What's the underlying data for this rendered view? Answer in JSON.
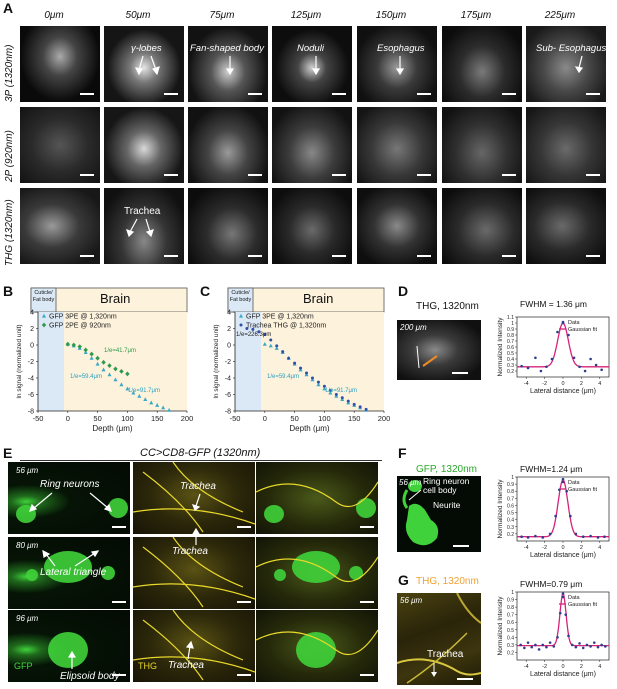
{
  "panel_letters": {
    "A": "A",
    "B": "B",
    "C": "C",
    "D": "D",
    "E": "E",
    "F": "F",
    "G": "G"
  },
  "panelA": {
    "depths": [
      "0μm",
      "50μm",
      "75μm",
      "125μm",
      "150μm",
      "175μm",
      "225μm"
    ],
    "rows": [
      "3P (1320nm)",
      "2P (920nm)",
      "THG (1320nm)"
    ],
    "annotations": {
      "gamma_lobes": "γ-lobes",
      "fan_shaped_body": "Fan-shaped body",
      "noduli": "Noduli",
      "esophagus": "Esophagus",
      "sub_esophagus": "Sub- Esophagus",
      "trachea": "Trachea"
    }
  },
  "panelB": {
    "region1": "Cuticle/ Fat body",
    "region2": "Brain"
  },
  "panelC": {
    "region1": "Cuticle/ Fat body",
    "region2": "Brain"
  },
  "panelD": {
    "title": "THG, 1320nm",
    "depth": "200 μm",
    "fwhm": "FWHM = 1.36 μm"
  },
  "panelE": {
    "title": "CC>CD8-GFP (1320nm)",
    "depths": [
      "56 μm",
      "80 μm",
      "96 μm"
    ],
    "annotations": {
      "ring_neurons": "Ring neurons",
      "lateral_triangle": "Lateral triangle",
      "ellipsoid_body": "Elipsoid body",
      "gfp": "GFP",
      "thg": "THG",
      "trachea": "Trachea"
    }
  },
  "panelF": {
    "title": "GFP, 1320nm",
    "depth": "56 μm",
    "ring": "Ring neuron cell body",
    "neurite": "Neurite",
    "fwhm": "FWHM=1.24 μm"
  },
  "panelG": {
    "title": "THG, 1320nm",
    "depth": "56 μm",
    "trachea": "Trachea",
    "fwhm": "FWHM=0.79 μm"
  },
  "chart_data": [
    {
      "id": "B",
      "type": "scatter",
      "xlabel": "Depth (μm)",
      "ylabel": "ln signal (normalized unit)",
      "xlim": [
        -50,
        200
      ],
      "ylim": [
        -8,
        4
      ],
      "xticks": [
        -50,
        0,
        50,
        100,
        150,
        200
      ],
      "yticks": [
        4,
        2,
        0,
        -2,
        -4,
        -6,
        -8
      ],
      "series": [
        {
          "name": "GFP 3PE @ 1,320nm",
          "marker": "triangle",
          "color": "#3aa8c8",
          "x": [
            0,
            10,
            20,
            30,
            40,
            50,
            60,
            70,
            80,
            90,
            100,
            110,
            120,
            130,
            140,
            150,
            160,
            170
          ],
          "y": [
            0.1,
            -0.1,
            -0.4,
            -0.9,
            -1.6,
            -2.3,
            -3.0,
            -3.6,
            -4.2,
            -4.8,
            -5.3,
            -5.8,
            -6.2,
            -6.6,
            -7.0,
            -7.3,
            -7.6,
            -7.9
          ]
        },
        {
          "name": "GFP 2PE @ 920nm",
          "marker": "diamond",
          "color": "#2e9a4e",
          "x": [
            0,
            10,
            20,
            30,
            40,
            50,
            60,
            70,
            80,
            90,
            100
          ],
          "y": [
            0.1,
            0.0,
            -0.2,
            -0.6,
            -1.1,
            -1.6,
            -2.1,
            -2.5,
            -2.9,
            -3.2,
            -3.5
          ]
        }
      ],
      "annotations": [
        "1/e=41.7μm",
        "1/e=59.4μm",
        "1/e=91.7μm"
      ]
    },
    {
      "id": "C",
      "type": "scatter",
      "xlabel": "Depth (μm)",
      "ylabel": "ln signal (normalized unit)",
      "xlim": [
        -50,
        200
      ],
      "ylim": [
        -8,
        4
      ],
      "xticks": [
        -50,
        0,
        50,
        100,
        150,
        200
      ],
      "yticks": [
        4,
        2,
        0,
        -2,
        -4,
        -6,
        -8
      ],
      "series": [
        {
          "name": "GFP 3PE @ 1,320nm",
          "marker": "triangle",
          "color": "#3aa8c8",
          "x": [
            0,
            10,
            20,
            30,
            40,
            50,
            60,
            70,
            80,
            90,
            100,
            110,
            120,
            130,
            140,
            150,
            160,
            170
          ],
          "y": [
            0.1,
            -0.1,
            -0.4,
            -0.9,
            -1.6,
            -2.3,
            -3.0,
            -3.6,
            -4.2,
            -4.8,
            -5.3,
            -5.8,
            -6.2,
            -6.6,
            -7.0,
            -7.3,
            -7.6,
            -7.9
          ]
        },
        {
          "name": "Trachea THG @ 1,320nm",
          "marker": "circle",
          "color": "#2f4fa8",
          "x": [
            -30,
            -20,
            -10,
            0,
            10,
            20,
            30,
            40,
            50,
            60,
            70,
            80,
            90,
            100,
            110,
            120,
            130,
            140,
            150,
            160,
            170
          ],
          "y": [
            2.0,
            1.9,
            1.6,
            1.3,
            0.6,
            -0.1,
            -0.8,
            -1.6,
            -2.2,
            -2.8,
            -3.4,
            -4.0,
            -4.5,
            -5.0,
            -5.5,
            -6.0,
            -6.4,
            -6.8,
            -7.2,
            -7.5,
            -7.8
          ]
        }
      ],
      "annotations": [
        "1/e=226.3μm",
        "1/e=59.4μm",
        "1/e=91.7μm"
      ]
    },
    {
      "id": "D",
      "type": "scatter",
      "xlabel": "Lateral distance (μm)",
      "ylabel": "Normalized Intensity",
      "xlim": [
        -5,
        5
      ],
      "ylim": [
        0.1,
        1.1
      ],
      "xticks": [
        -4,
        -2,
        0,
        2,
        4
      ],
      "yticks": [
        0.2,
        0.3,
        0.4,
        0.5,
        0.6,
        0.7,
        0.8,
        0.9,
        1,
        1.1
      ],
      "series": [
        {
          "name": "Data",
          "marker": "dot",
          "color": "#2c3e8c",
          "x": [
            -4.5,
            -3.8,
            -3,
            -2.4,
            -1.8,
            -1.2,
            -0.6,
            0,
            0.6,
            1.2,
            1.8,
            2.4,
            3,
            3.6,
            4.2
          ],
          "y": [
            0.28,
            0.25,
            0.42,
            0.2,
            0.27,
            0.4,
            0.85,
            1.0,
            0.8,
            0.42,
            0.27,
            0.2,
            0.4,
            0.3,
            0.22
          ]
        },
        {
          "name": "Gaussian fit",
          "marker": "line",
          "color": "#d6237a",
          "fwhm": 1.36,
          "baseline": 0.27,
          "peak": 1.0
        }
      ]
    },
    {
      "id": "F",
      "type": "scatter",
      "xlabel": "Lateral distance (μm)",
      "ylabel": "Normalized Intensity",
      "xlim": [
        -5,
        5
      ],
      "ylim": [
        0.1,
        1.0
      ],
      "xticks": [
        -4,
        -2,
        0,
        2,
        4
      ],
      "yticks": [
        0.2,
        0.3,
        0.4,
        0.5,
        0.6,
        0.7,
        0.8,
        0.9,
        1
      ],
      "series": [
        {
          "name": "Data",
          "marker": "dot",
          "color": "#2c3e8c",
          "x": [
            -4.5,
            -3.8,
            -3,
            -2.2,
            -1.4,
            -0.8,
            -0.4,
            0,
            0.4,
            0.8,
            1.4,
            2.2,
            3,
            3.8,
            4.5
          ],
          "y": [
            0.16,
            0.15,
            0.17,
            0.15,
            0.2,
            0.45,
            0.82,
            0.97,
            0.8,
            0.45,
            0.2,
            0.16,
            0.17,
            0.15,
            0.16
          ]
        },
        {
          "name": "Gaussian fit",
          "marker": "line",
          "color": "#d6237a",
          "fwhm": 1.24,
          "baseline": 0.16,
          "peak": 0.96
        }
      ]
    },
    {
      "id": "G",
      "type": "scatter",
      "xlabel": "Lateral distance (μm)",
      "ylabel": "Normalized Intensity",
      "xlim": [
        -5,
        5
      ],
      "ylim": [
        0.1,
        1.0
      ],
      "xticks": [
        -4,
        -2,
        0,
        2,
        4
      ],
      "yticks": [
        0.2,
        0.3,
        0.4,
        0.5,
        0.6,
        0.7,
        0.8,
        0.9,
        1
      ],
      "series": [
        {
          "name": "Data",
          "marker": "dot",
          "color": "#2c3e8c",
          "x": [
            -4.6,
            -4.2,
            -3.8,
            -3.4,
            -3,
            -2.6,
            -2.2,
            -1.8,
            -1.4,
            -1,
            -0.6,
            -0.3,
            0,
            0.3,
            0.6,
            1,
            1.4,
            1.8,
            2.2,
            2.6,
            3,
            3.4,
            3.8,
            4.2,
            4.6
          ],
          "y": [
            0.3,
            0.26,
            0.33,
            0.27,
            0.3,
            0.24,
            0.3,
            0.27,
            0.33,
            0.28,
            0.4,
            0.72,
            0.98,
            0.7,
            0.42,
            0.3,
            0.27,
            0.32,
            0.26,
            0.3,
            0.28,
            0.33,
            0.27,
            0.3,
            0.28
          ]
        },
        {
          "name": "Gaussian fit",
          "marker": "line",
          "color": "#d6237a",
          "fwhm": 0.79,
          "baseline": 0.29,
          "peak": 0.98
        }
      ]
    }
  ]
}
